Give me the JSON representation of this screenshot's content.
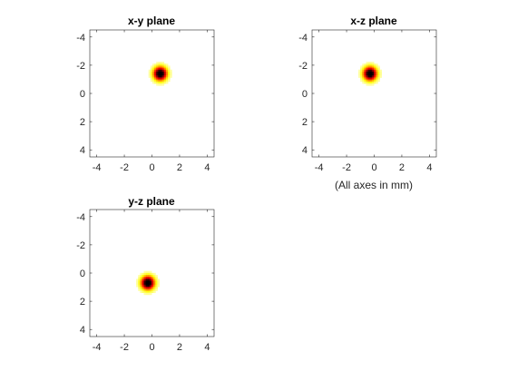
{
  "chart_data": [
    {
      "type": "heatmap",
      "title": "x-y plane",
      "xlabel": "",
      "ylabel": "",
      "x_ticks": [
        -4,
        -2,
        0,
        2,
        4
      ],
      "y_ticks": [
        -4,
        -2,
        0,
        2,
        4
      ],
      "xlim": [
        -4.5,
        4.5
      ],
      "ylim": [
        -4.5,
        4.5
      ],
      "y_direction": "reversed",
      "grid": false,
      "colormap": "hot",
      "blob": {
        "x": 0.6,
        "y": -1.4,
        "sigma": 0.35
      }
    },
    {
      "type": "heatmap",
      "title": "x-z plane",
      "xlabel": "(All axes in mm)",
      "ylabel": "",
      "x_ticks": [
        -4,
        -2,
        0,
        2,
        4
      ],
      "y_ticks": [
        -4,
        -2,
        0,
        2,
        4
      ],
      "xlim": [
        -4.5,
        4.5
      ],
      "ylim": [
        -4.5,
        4.5
      ],
      "y_direction": "reversed",
      "grid": false,
      "colormap": "hot",
      "blob": {
        "x": -0.3,
        "y": -1.4,
        "sigma": 0.35
      }
    },
    {
      "type": "heatmap",
      "title": "y-z plane",
      "xlabel": "",
      "ylabel": "",
      "x_ticks": [
        -4,
        -2,
        0,
        2,
        4
      ],
      "y_ticks": [
        -4,
        -2,
        0,
        2,
        4
      ],
      "xlim": [
        -4.5,
        4.5
      ],
      "ylim": [
        -4.5,
        4.5
      ],
      "y_direction": "reversed",
      "grid": false,
      "colormap": "hot",
      "blob": {
        "x": -0.3,
        "y": 0.7,
        "sigma": 0.35
      }
    }
  ],
  "colors": {
    "axis": "#262626",
    "background": "#ffffff",
    "colormap_stops": [
      "#000000",
      "#800000",
      "#ff0000",
      "#ff8000",
      "#ffff00",
      "#ffffff"
    ]
  }
}
